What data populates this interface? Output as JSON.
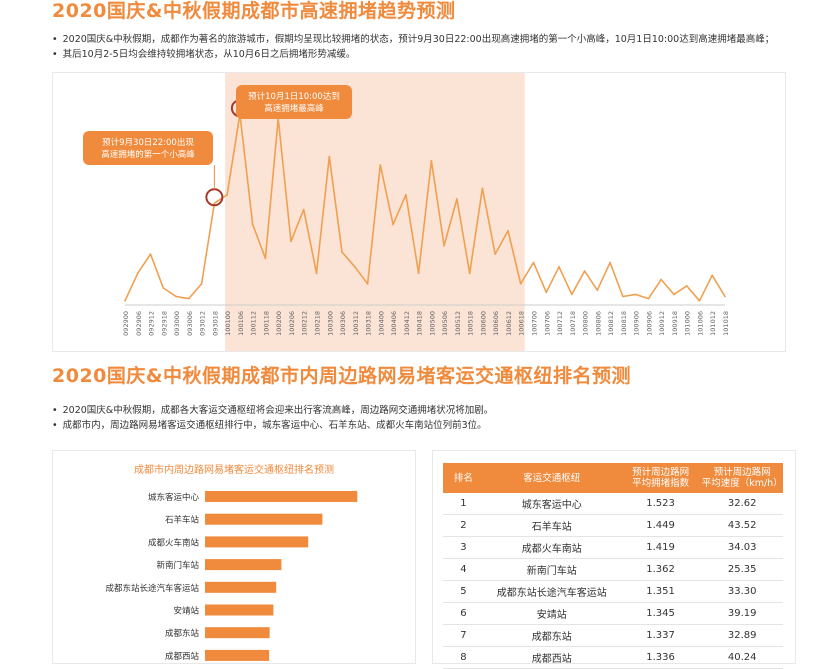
{
  "section1": {
    "title": "2020国庆&中秋假期成都市高速拥堵趋势预测",
    "bullets": [
      "2020国庆&中秋假期，成都作为著名的旅游城市，假期均呈现比较拥堵的状态，预计9月30日22:00出现高速拥堵的第一个小高峰，10月1日10:00达到高速拥堵最高峰；",
      "其后10月2-5日均会维持较拥堵状态，从10月6日之后拥堵形势减缓。"
    ]
  },
  "section2": {
    "title": "2020国庆&中秋假期成都市内周边路网易堵客运交通枢纽排名预测",
    "bullets": [
      "2020国庆&中秋假期，成都各大客运交通枢纽将会迎来出行客流高峰，周边路网交通拥堵状况将加剧。",
      "成都市内，周边路网易堵客运交通枢纽排行中，城东客运中心、石羊东站、成都火车南站位列前3位。"
    ]
  },
  "colors": {
    "accent": "#f08a3c",
    "highlight": "#fbe3d6",
    "line": "#f0a050",
    "marker": "#a33a2a"
  },
  "chart_data": [
    {
      "type": "line",
      "title": "",
      "xlabel": "",
      "ylabel": "",
      "x": [
        "092900",
        "092906",
        "092912",
        "092918",
        "093000",
        "093006",
        "093012",
        "093018",
        "100100",
        "100106",
        "100112",
        "100118",
        "100200",
        "100206",
        "100212",
        "100218",
        "100300",
        "100306",
        "100312",
        "100318",
        "100400",
        "100406",
        "100412",
        "100418",
        "100500",
        "100506",
        "100512",
        "100518",
        "100600",
        "100606",
        "100612",
        "100618",
        "100700",
        "100706",
        "100712",
        "100718",
        "100800",
        "100806",
        "100812",
        "100818",
        "100900",
        "100906",
        "100912",
        "100918",
        "101000",
        "101006",
        "101012",
        "101018"
      ],
      "values": [
        2,
        15,
        24,
        8,
        4,
        3,
        10,
        48,
        52,
        90,
        38,
        22,
        88,
        30,
        45,
        15,
        70,
        25,
        18,
        10,
        66,
        38,
        52,
        15,
        68,
        28,
        50,
        15,
        55,
        24,
        35,
        10,
        20,
        6,
        18,
        5,
        16,
        7,
        20,
        4,
        5,
        3,
        12,
        5,
        9,
        2,
        14,
        4
      ],
      "highlight_range": [
        "100100",
        "100618"
      ],
      "grid": false,
      "annotations": [
        {
          "x": "093018",
          "text_lines": [
            "预计9月30日22:00出现",
            "高速拥堵的第一个小高峰"
          ]
        },
        {
          "x": "100106",
          "text_lines": [
            "预计10月1日10:00达到",
            "高速拥堵最高峰"
          ]
        }
      ]
    },
    {
      "type": "bar",
      "orientation": "horizontal",
      "title": "成都市内周边路网易堵客运交通枢纽排名预测",
      "categories": [
        "城东客运中心",
        "石羊车站",
        "成都火车南站",
        "新南门车站",
        "成都东站长途汽车客运站",
        "安靖站",
        "成都东站",
        "成都西站"
      ],
      "values": [
        1.523,
        1.449,
        1.419,
        1.362,
        1.351,
        1.345,
        1.337,
        1.336
      ],
      "xlim": [
        1.2,
        1.55
      ]
    },
    {
      "type": "table",
      "headers": [
        "排名",
        "客运交通枢纽",
        "预计周边路网\n平均拥堵指数",
        "预计周边路网\n平均速度（km/h）"
      ],
      "rows": [
        [
          "1",
          "城东客运中心",
          "1.523",
          "32.62"
        ],
        [
          "2",
          "石羊车站",
          "1.449",
          "43.52"
        ],
        [
          "3",
          "成都火车南站",
          "1.419",
          "34.03"
        ],
        [
          "4",
          "新南门车站",
          "1.362",
          "25.35"
        ],
        [
          "5",
          "成都东站长途汽车客运站",
          "1.351",
          "33.30"
        ],
        [
          "6",
          "安靖站",
          "1.345",
          "39.19"
        ],
        [
          "7",
          "成都东站",
          "1.337",
          "32.89"
        ],
        [
          "8",
          "成都西站",
          "1.336",
          "40.24"
        ]
      ]
    }
  ]
}
